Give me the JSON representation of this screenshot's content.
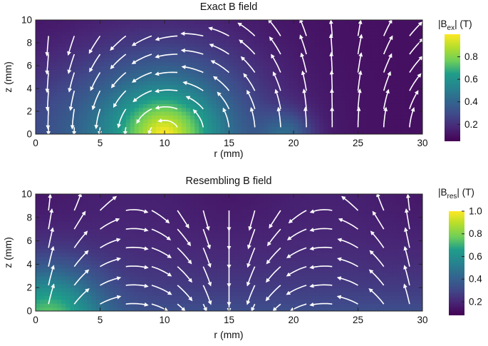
{
  "chart_data": [
    {
      "type": "heatmap",
      "title": "Exact B field",
      "xlabel": "r (mm)",
      "ylabel": "z (mm)",
      "xlim": [
        0,
        30
      ],
      "ylim": [
        0,
        10
      ],
      "xticks": [
        "0",
        "5",
        "10",
        "15",
        "20",
        "25",
        "30"
      ],
      "yticks": [
        "0",
        "2",
        "4",
        "6",
        "8",
        "10"
      ],
      "colorbar": {
        "label_main": "|B",
        "label_sub": "ex",
        "label_end": "| (T)",
        "ticks": [
          "0.2",
          "0.4",
          "0.6",
          "0.8"
        ],
        "tick_values": [
          0.2,
          0.4,
          0.6,
          0.8
        ],
        "range": [
          0.05,
          1.0
        ],
        "colormap": "viridis"
      },
      "stream_color": "#ffffff",
      "note": "Field magnitude peaks near the conductor at r≈10 mm, z≈0; streamlines loop around it."
    },
    {
      "type": "heatmap",
      "title": "Resembling B field",
      "xlabel": "r (mm)",
      "ylabel": "z (mm)",
      "xlim": [
        0,
        30
      ],
      "ylim": [
        0,
        10
      ],
      "xticks": [
        "0",
        "5",
        "10",
        "15",
        "20",
        "25",
        "30"
      ],
      "yticks": [
        "0",
        "2",
        "4",
        "6",
        "8",
        "10"
      ],
      "colorbar": {
        "label_main": "|B",
        "label_sub": "res",
        "label_end": "| (T)",
        "ticks": [
          "0.2",
          "0.4",
          "0.6",
          "0.8",
          "1.0"
        ],
        "tick_values": [
          0.2,
          0.4,
          0.6,
          0.8,
          1.0
        ],
        "range": [
          0.08,
          1.0
        ],
        "colormap": "viridis"
      },
      "stream_color": "#ffffff"
    }
  ]
}
